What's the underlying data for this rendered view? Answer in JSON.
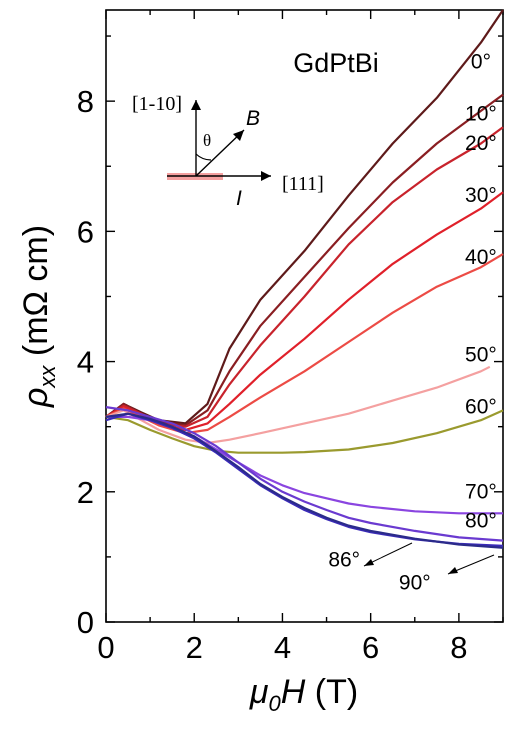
{
  "chart_data": {
    "type": "line",
    "title": "GdPtBi",
    "xlabel": "μ0H (T)",
    "ylabel": "ρxx (mΩ cm)",
    "xlim": [
      0,
      9
    ],
    "ylim": [
      0,
      9.4
    ],
    "x_ticks": [
      "0",
      "2",
      "4",
      "6",
      "8"
    ],
    "y_ticks": [
      "0",
      "2",
      "4",
      "6",
      "8"
    ],
    "grid": false,
    "legend": "none",
    "inset": {
      "axis_up": "[1-10]",
      "axis_right": "[111]",
      "field": "B",
      "current": "I",
      "angle": "θ"
    },
    "series": [
      {
        "name": "0°",
        "color": "#5e1a1a",
        "label_value": [
          8.5,
          8.5
        ],
        "x": [
          0,
          0.4,
          0.8,
          1.2,
          1.8,
          2.3,
          2.8,
          3.5,
          4.5,
          5.5,
          6.5,
          7.5,
          8.5,
          9
        ],
        "y": [
          3.15,
          3.35,
          3.22,
          3.1,
          3.05,
          3.35,
          4.2,
          4.95,
          5.7,
          6.55,
          7.35,
          8.05,
          8.9,
          9.4
        ]
      },
      {
        "name": "10°",
        "color": "#8a1e22",
        "label_value": [
          8.5,
          7.7
        ],
        "x": [
          0,
          0.4,
          0.8,
          1.2,
          1.8,
          2.3,
          2.8,
          3.5,
          4.5,
          5.5,
          6.5,
          7.5,
          8.5,
          9
        ],
        "y": [
          3.15,
          3.35,
          3.2,
          3.08,
          3.02,
          3.25,
          3.85,
          4.55,
          5.3,
          6.05,
          6.75,
          7.35,
          7.85,
          8.1
        ]
      },
      {
        "name": "20°",
        "color": "#c8232c",
        "label_value": [
          8.5,
          7.25
        ],
        "x": [
          0,
          0.4,
          0.8,
          1.2,
          1.8,
          2.3,
          2.8,
          3.5,
          4.5,
          5.5,
          6.5,
          7.5,
          8.5,
          9
        ],
        "y": [
          3.15,
          3.32,
          3.2,
          3.05,
          3.0,
          3.15,
          3.65,
          4.25,
          5.0,
          5.8,
          6.45,
          6.95,
          7.35,
          7.6
        ]
      },
      {
        "name": "30°",
        "color": "#e0202a",
        "label_value": [
          8.5,
          6.45
        ],
        "x": [
          0,
          0.4,
          0.8,
          1.2,
          1.8,
          2.3,
          2.8,
          3.5,
          4.5,
          5.5,
          6.5,
          7.5,
          8.5,
          9
        ],
        "y": [
          3.15,
          3.3,
          3.18,
          3.05,
          2.95,
          3.05,
          3.35,
          3.8,
          4.35,
          4.95,
          5.5,
          5.95,
          6.35,
          6.6
        ]
      },
      {
        "name": "40°",
        "color": "#ec4b45",
        "label_value": [
          8.5,
          5.5
        ],
        "x": [
          0,
          0.4,
          0.8,
          1.2,
          1.8,
          2.3,
          2.8,
          3.5,
          4.5,
          5.5,
          6.5,
          7.5,
          8.5,
          9
        ],
        "y": [
          3.15,
          3.28,
          3.15,
          3.02,
          2.9,
          2.95,
          3.15,
          3.45,
          3.85,
          4.3,
          4.75,
          5.15,
          5.45,
          5.65
        ]
      },
      {
        "name": "50°",
        "color": "#f4a0a0",
        "label_value": [
          8.5,
          4.0
        ],
        "x": [
          0,
          0.4,
          0.8,
          1.2,
          1.8,
          2.3,
          2.8,
          3.5,
          4.5,
          5.5,
          6.5,
          7.5,
          8.5,
          8.7
        ],
        "y": [
          3.15,
          3.25,
          3.1,
          2.95,
          2.8,
          2.75,
          2.8,
          2.9,
          3.05,
          3.2,
          3.4,
          3.6,
          3.85,
          3.92
        ]
      },
      {
        "name": "60°",
        "color": "#9a9a2e",
        "label_value": [
          8.5,
          3.2
        ],
        "x": [
          0,
          0.5,
          1.0,
          1.5,
          2.0,
          2.5,
          3.0,
          3.5,
          4.0,
          4.5,
          5.5,
          6.5,
          7.5,
          8.5,
          9
        ],
        "y": [
          3.15,
          3.1,
          2.95,
          2.82,
          2.7,
          2.63,
          2.6,
          2.6,
          2.6,
          2.61,
          2.65,
          2.75,
          2.9,
          3.1,
          3.25
        ]
      },
      {
        "name": "70°",
        "color": "#8a45e0",
        "label_value": [
          8.5,
          1.9
        ],
        "x": [
          0,
          0.5,
          1.0,
          1.5,
          2.0,
          2.5,
          3.0,
          3.5,
          4.0,
          4.5,
          5.0,
          5.5,
          6.0,
          7.0,
          8.0,
          9
        ],
        "y": [
          3.15,
          3.15,
          3.1,
          3.0,
          2.85,
          2.65,
          2.45,
          2.25,
          2.1,
          1.98,
          1.9,
          1.82,
          1.77,
          1.7,
          1.67,
          1.67
        ]
      },
      {
        "name": "80°",
        "color": "#6a3ad0",
        "label_value": [
          8.5,
          1.45
        ],
        "x": [
          0,
          0.5,
          1.0,
          1.5,
          2.0,
          2.5,
          3.0,
          3.5,
          4.0,
          4.5,
          5.0,
          5.5,
          6.0,
          7.0,
          8.0,
          9
        ],
        "y": [
          3.3,
          3.25,
          3.15,
          3.05,
          2.9,
          2.7,
          2.45,
          2.2,
          2.0,
          1.85,
          1.72,
          1.6,
          1.52,
          1.4,
          1.3,
          1.25
        ]
      },
      {
        "name": "86°",
        "color": "#3a2ab8",
        "label_value": [
          5.4,
          0.85
        ],
        "x": [
          0,
          0.5,
          1.0,
          1.5,
          2.0,
          2.5,
          3.0,
          3.5,
          4.0,
          4.5,
          5.0,
          5.5,
          6.0,
          7.0,
          8.0,
          9
        ],
        "y": [
          3.1,
          3.2,
          3.1,
          2.98,
          2.82,
          2.6,
          2.35,
          2.1,
          1.9,
          1.72,
          1.58,
          1.46,
          1.38,
          1.27,
          1.2,
          1.17
        ]
      },
      {
        "name": "90°",
        "color": "#2b2b8a",
        "label_value": [
          7.0,
          0.5
        ],
        "x": [
          0,
          0.5,
          1.0,
          1.5,
          2.0,
          2.5,
          3.0,
          3.5,
          4.0,
          4.5,
          5.0,
          5.5,
          6.0,
          7.0,
          8.0,
          9
        ],
        "y": [
          3.15,
          3.2,
          3.12,
          3.0,
          2.85,
          2.62,
          2.38,
          2.12,
          1.92,
          1.75,
          1.6,
          1.48,
          1.4,
          1.28,
          1.19,
          1.14
        ]
      }
    ]
  }
}
